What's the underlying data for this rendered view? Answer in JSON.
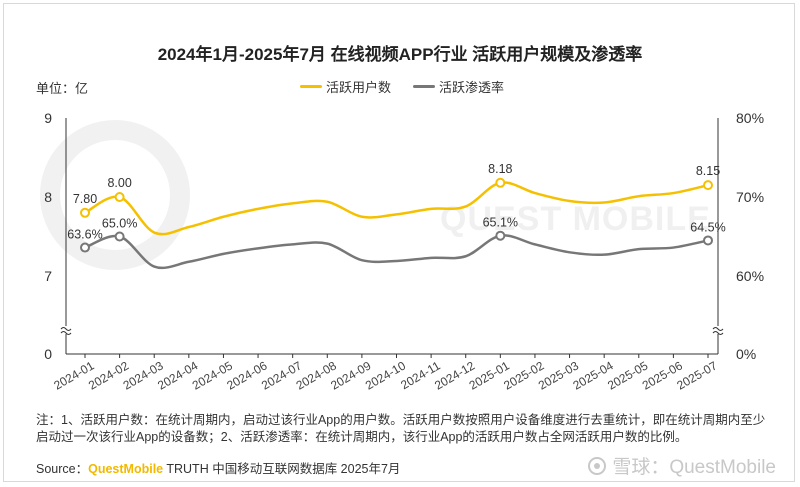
{
  "title": "2024年1月-2025年7月 在线视频APP行业 活跃用户规模及渗透率",
  "unit_label": "单位：亿",
  "watermark": {
    "site": "雪球：QuestMobile",
    "bg_text": "QUEST MOBILE"
  },
  "note": "注：1、活跃用户数：在统计周期内，启动过该行业App的用户数。活跃用户数按照用户设备维度进行去重统计，即在统计周期内至少启动过一次该行业App的设备数；2、活跃渗透率：在统计周期内，该行业App的活跃用户数占全网活跃用户数的比例。",
  "source": {
    "prefix": "Source：",
    "brand": "QuestMobile",
    "rest": " TRUTH 中国移动互联网数据库 2025年7月"
  },
  "colors": {
    "users": "#f5c000",
    "penetration": "#777777",
    "axis": "#333333"
  },
  "chart_data": {
    "type": "line",
    "x": [
      "2024-01",
      "2024-02",
      "2024-03",
      "2024-04",
      "2024-05",
      "2024-06",
      "2024-07",
      "2024-08",
      "2024-09",
      "2024-10",
      "2024-11",
      "2024-12",
      "2025-01",
      "2025-02",
      "2025-03",
      "2025-04",
      "2025-05",
      "2025-06",
      "2025-07"
    ],
    "series": [
      {
        "name": "活跃用户数",
        "axis": "left",
        "values": [
          7.8,
          8.0,
          7.55,
          7.62,
          7.75,
          7.85,
          7.92,
          7.94,
          7.75,
          7.78,
          7.85,
          7.88,
          8.18,
          8.05,
          7.95,
          7.93,
          8.01,
          8.05,
          8.15
        ],
        "labels": {
          "0": "7.80",
          "1": "8.00",
          "12": "8.18",
          "18": "8.15"
        }
      },
      {
        "name": "活跃渗透率",
        "axis": "right",
        "values": [
          63.6,
          65.0,
          61.2,
          61.8,
          62.8,
          63.5,
          64.0,
          64.1,
          62.0,
          61.9,
          62.3,
          62.5,
          65.1,
          64.0,
          63.0,
          62.7,
          63.4,
          63.6,
          64.5
        ],
        "labels": {
          "0": "63.6%",
          "1": "65.0%",
          "12": "65.1%",
          "18": "64.5%"
        }
      }
    ],
    "left_axis": {
      "ticks": [
        "9",
        "8",
        "7",
        "0"
      ],
      "broken": true
    },
    "right_axis": {
      "ticks": [
        "80%",
        "70%",
        "60%",
        "0%"
      ],
      "broken": true
    },
    "legend_position": "top",
    "grid": false
  }
}
